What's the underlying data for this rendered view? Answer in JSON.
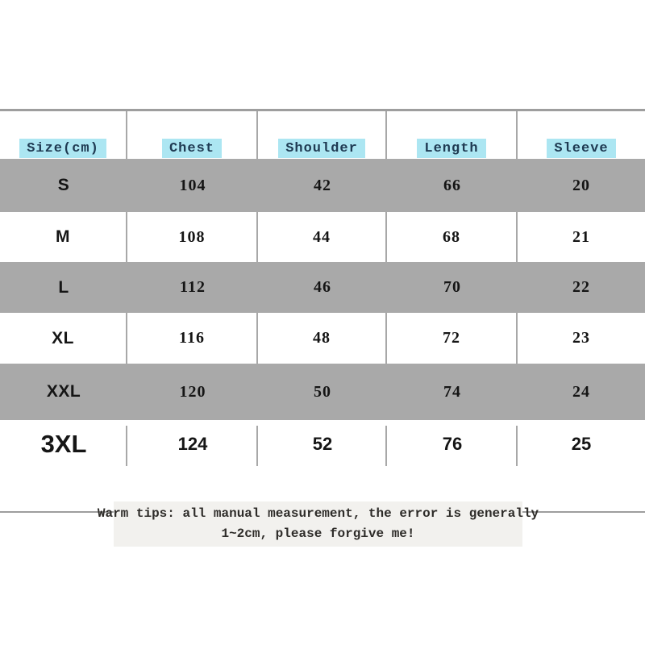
{
  "chart_data": {
    "type": "table",
    "columns": [
      "Size(cm)",
      "Chest",
      "Shoulder",
      "Length",
      "Sleeve"
    ],
    "rows": [
      [
        "S",
        104,
        42,
        66,
        20
      ],
      [
        "M",
        108,
        44,
        68,
        21
      ],
      [
        "L",
        112,
        46,
        70,
        22
      ],
      [
        "XL",
        116,
        48,
        72,
        23
      ],
      [
        "XXL",
        120,
        50,
        74,
        24
      ],
      [
        "3XL",
        124,
        52,
        76,
        25
      ]
    ],
    "shaded_rows": [
      "S",
      "L",
      "XXL"
    ],
    "note": "Warm tips: all manual measurement, the error is generally 1~2cm, please forgive me!"
  },
  "note": {
    "line1": "Warm tips: all manual measurement, the error is generally",
    "line2": "1~2cm, please forgive me!"
  },
  "colors": {
    "header_highlight": "#ace6f2",
    "header_text": "#1f3a52",
    "shaded_row": "#a9a9a9",
    "grid_line": "#a8a8a8",
    "note_background": "#f2f1ee",
    "text": "#151515"
  }
}
